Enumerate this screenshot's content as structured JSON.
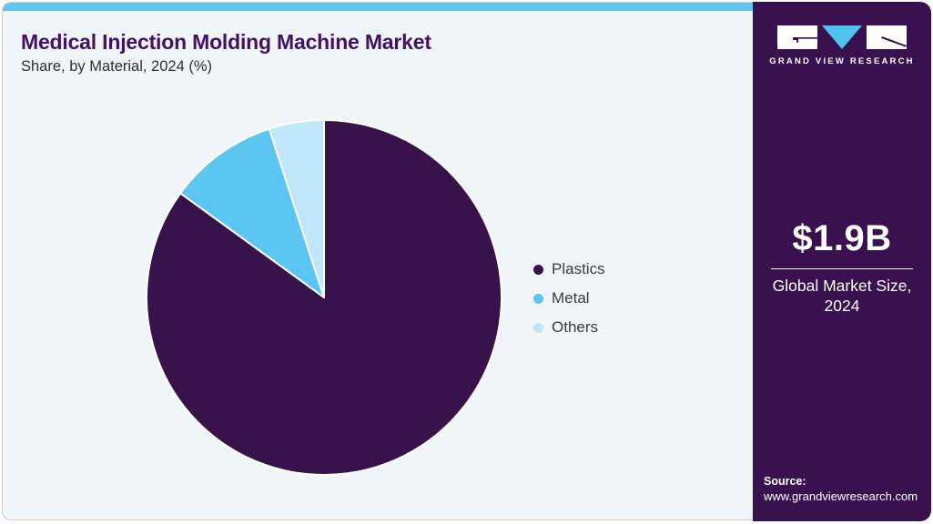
{
  "header": {
    "title": "Medical Injection Molding Machine Market",
    "subtitle": "Share, by Material, 2024 (%)"
  },
  "chart_data": {
    "type": "pie",
    "title": "Medical Injection Molding Machine Market",
    "subtitle": "Share, by Material, 2024 (%)",
    "labels": [
      "Plastics",
      "Metal",
      "Others"
    ],
    "values": [
      85,
      10,
      5
    ],
    "unit": "%",
    "colors": [
      "#38124b",
      "#5bc6f2",
      "#bfe6f9"
    ],
    "start_angle_deg": 0,
    "direction": "clockwise",
    "legend_position": "right",
    "slice_stroke": "#ffffff"
  },
  "sidebar": {
    "brand_name": "GRAND VIEW RESEARCH",
    "stat_value": "$1.9B",
    "stat_label": "Global Market Size, 2024",
    "source_label": "Source:",
    "source_url": "www.grandviewresearch.com"
  },
  "colors": {
    "accent_topbar": "#5ec8f2",
    "sidebar_bg": "#38114e",
    "card_bg": "#eff5f9",
    "title_color": "#411266",
    "logo_triangle": "#4fc2ef"
  }
}
